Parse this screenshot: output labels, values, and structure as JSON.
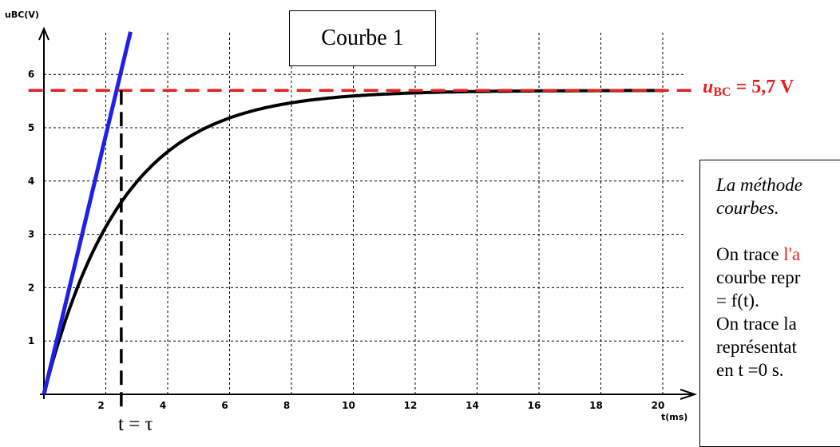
{
  "chart_data": {
    "type": "line",
    "title": "Courbe 1",
    "xlabel": "t(ms)",
    "ylabel": "uBC(V)",
    "xlim": [
      0,
      21
    ],
    "ylim": [
      0,
      6.8
    ],
    "x_ticks": [
      2,
      4,
      6,
      8,
      10,
      12,
      14,
      16,
      18,
      20
    ],
    "y_ticks": [
      1,
      2,
      3,
      4,
      5,
      6
    ],
    "grid": true,
    "series": [
      {
        "x": [
          0,
          0.5,
          1,
          1.5,
          2,
          2.5,
          3,
          4,
          5,
          6,
          7,
          8,
          9,
          10,
          12,
          14,
          16,
          18,
          20
        ],
        "y": [
          0,
          1.02,
          1.86,
          2.55,
          3.11,
          3.58,
          3.96,
          4.53,
          4.92,
          5.18,
          5.36,
          5.47,
          5.55,
          5.6,
          5.66,
          5.68,
          5.69,
          5.7,
          5.7
        ],
        "color": "#000000"
      },
      {
        "x": [
          0,
          2.8
        ],
        "y": [
          0,
          6.8
        ],
        "color": "#1f1fe8"
      }
    ],
    "reference_lines": [
      {
        "orientation": "horizontal",
        "value": 5.7,
        "color": "#e62020"
      },
      {
        "orientation": "vertical",
        "value": 2.5,
        "color": "#000000"
      }
    ]
  },
  "annotations": {
    "asymptote_var": "u",
    "asymptote_sub": "BC",
    "asymptote_value": " = 5,7 V",
    "tau_label": "t = τ"
  },
  "method_box": {
    "line1": "La méthode",
    "line2": "courbes.",
    "line3_start": "On trace ",
    "line3_red": "l'a",
    "line4": "courbe repr",
    "line5": "= f(t).",
    "line6": "On trace la",
    "line7": "représentat",
    "line8": "en t =0 s."
  }
}
